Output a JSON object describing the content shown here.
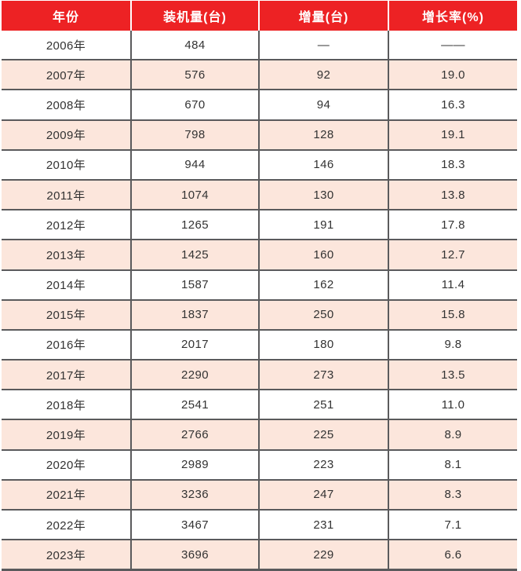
{
  "table": {
    "columns": [
      "年份",
      "装机量(台)",
      "增量(台)",
      "增长率(%)"
    ],
    "rows": [
      [
        "2006年",
        "484",
        "—",
        "——"
      ],
      [
        "2007年",
        "576",
        "92",
        "19.0"
      ],
      [
        "2008年",
        "670",
        "94",
        "16.3"
      ],
      [
        "2009年",
        "798",
        "128",
        "19.1"
      ],
      [
        "2010年",
        "944",
        "146",
        "18.3"
      ],
      [
        "2011年",
        "1074",
        "130",
        "13.8"
      ],
      [
        "2012年",
        "1265",
        "191",
        "17.8"
      ],
      [
        "2013年",
        "1425",
        "160",
        "12.7"
      ],
      [
        "2014年",
        "1587",
        "162",
        "11.4"
      ],
      [
        "2015年",
        "1837",
        "250",
        "15.8"
      ],
      [
        "2016年",
        "2017",
        "180",
        "9.8"
      ],
      [
        "2017年",
        "2290",
        "273",
        "13.5"
      ],
      [
        "2018年",
        "2541",
        "251",
        "11.0"
      ],
      [
        "2019年",
        "2766",
        "225",
        "8.9"
      ],
      [
        "2020年",
        "2989",
        "223",
        "8.1"
      ],
      [
        "2021年",
        "3236",
        "247",
        "8.3"
      ],
      [
        "2022年",
        "3467",
        "231",
        "7.1"
      ],
      [
        "2023年",
        "3696",
        "229",
        "6.6"
      ]
    ]
  },
  "colors": {
    "header_bg": "#ed2224",
    "header_text": "#ffffff",
    "row_bg": "#ffffff",
    "row_alt_bg": "#fce6dc",
    "border": "#5a5a5c",
    "text": "#333333"
  },
  "chart_data": {
    "type": "table",
    "title": "",
    "categories": [
      "2006年",
      "2007年",
      "2008年",
      "2009年",
      "2010年",
      "2011年",
      "2012年",
      "2013年",
      "2014年",
      "2015年",
      "2016年",
      "2017年",
      "2018年",
      "2019年",
      "2020年",
      "2021年",
      "2022年",
      "2023年"
    ],
    "series": [
      {
        "name": "装机量(台)",
        "values": [
          484,
          576,
          670,
          798,
          944,
          1074,
          1265,
          1425,
          1587,
          1837,
          2017,
          2290,
          2541,
          2766,
          2989,
          3236,
          3467,
          3696
        ]
      },
      {
        "name": "增量(台)",
        "values": [
          null,
          92,
          94,
          128,
          146,
          130,
          191,
          160,
          162,
          250,
          180,
          273,
          251,
          225,
          223,
          247,
          231,
          229
        ]
      },
      {
        "name": "增长率(%)",
        "values": [
          null,
          19.0,
          16.3,
          19.1,
          18.3,
          13.8,
          17.8,
          12.7,
          11.4,
          15.8,
          9.8,
          13.5,
          11.0,
          8.9,
          8.1,
          8.3,
          7.1,
          6.6
        ]
      }
    ],
    "legend_position": "none",
    "grid": true
  }
}
